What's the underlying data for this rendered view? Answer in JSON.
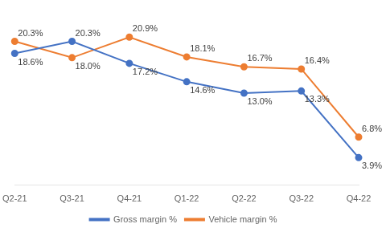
{
  "chart_data": {
    "type": "line",
    "categories": [
      "Q2-21",
      "Q3-21",
      "Q4-21",
      "Q1-22",
      "Q2-22",
      "Q3-22",
      "Q4-22"
    ],
    "series": [
      {
        "name": "Gross margin %",
        "color": "#4472C4",
        "marker": "circle",
        "values": [
          18.6,
          20.3,
          17.2,
          14.6,
          13.0,
          13.3,
          3.9
        ],
        "value_labels": [
          "18.6%",
          "20.3%",
          "17.2%",
          "14.6%",
          "13.0%",
          "13.3%",
          "3.9%"
        ]
      },
      {
        "name": "Vehicle margin %",
        "color": "#ED7D31",
        "marker": "circle",
        "values": [
          20.3,
          18.0,
          20.9,
          18.1,
          16.7,
          16.4,
          6.8
        ],
        "value_labels": [
          "20.3%",
          "18.0%",
          "20.9%",
          "18.1%",
          "16.7%",
          "16.4%",
          "6.8%"
        ]
      }
    ],
    "ylim": [
      0,
      25
    ],
    "grid": false,
    "tick_labels": "x",
    "legend": "bottom",
    "data_labels": true
  }
}
